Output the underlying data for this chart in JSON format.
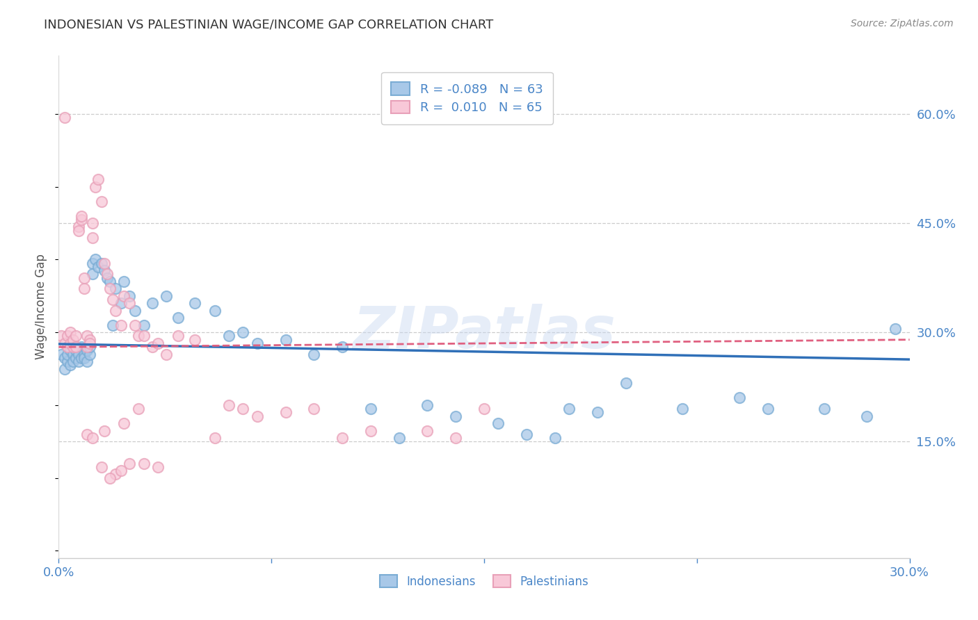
{
  "title": "INDONESIAN VS PALESTINIAN WAGE/INCOME GAP CORRELATION CHART",
  "source": "Source: ZipAtlas.com",
  "ylabel": "Wage/Income Gap",
  "x_min": 0.0,
  "x_max": 0.3,
  "y_min": -0.01,
  "y_max": 0.68,
  "yticks": [
    0.15,
    0.3,
    0.45,
    0.6
  ],
  "ytick_labels": [
    "15.0%",
    "30.0%",
    "45.0%",
    "60.0%"
  ],
  "xticks": [
    0.0,
    0.075,
    0.15,
    0.225,
    0.3
  ],
  "grid_color": "#cccccc",
  "bg_color": "#ffffff",
  "indonesian_color": "#a8c8e8",
  "indonesian_edge_color": "#7aacd4",
  "indonesian_line_color": "#3070b8",
  "palestinian_color": "#f8c8d8",
  "palestinian_edge_color": "#e8a0b8",
  "palestinian_line_color": "#e06080",
  "R_indonesian": -0.089,
  "N_indonesian": 63,
  "R_palestinian": 0.01,
  "N_palestinian": 65,
  "watermark": "ZIPatlas",
  "indonesian_dots_x": [
    0.001,
    0.002,
    0.002,
    0.003,
    0.003,
    0.004,
    0.004,
    0.005,
    0.005,
    0.006,
    0.006,
    0.007,
    0.007,
    0.008,
    0.008,
    0.009,
    0.009,
    0.01,
    0.01,
    0.011,
    0.011,
    0.012,
    0.012,
    0.013,
    0.014,
    0.015,
    0.016,
    0.017,
    0.018,
    0.019,
    0.02,
    0.022,
    0.023,
    0.025,
    0.027,
    0.03,
    0.033,
    0.038,
    0.042,
    0.048,
    0.055,
    0.06,
    0.065,
    0.07,
    0.08,
    0.09,
    0.1,
    0.11,
    0.13,
    0.14,
    0.155,
    0.165,
    0.18,
    0.19,
    0.2,
    0.22,
    0.25,
    0.27,
    0.285,
    0.295,
    0.12,
    0.175,
    0.24
  ],
  "indonesian_dots_y": [
    0.27,
    0.265,
    0.25,
    0.26,
    0.27,
    0.275,
    0.255,
    0.27,
    0.26,
    0.265,
    0.275,
    0.27,
    0.26,
    0.265,
    0.28,
    0.27,
    0.265,
    0.275,
    0.26,
    0.27,
    0.28,
    0.395,
    0.38,
    0.4,
    0.39,
    0.395,
    0.385,
    0.375,
    0.37,
    0.31,
    0.36,
    0.34,
    0.37,
    0.35,
    0.33,
    0.31,
    0.34,
    0.35,
    0.32,
    0.34,
    0.33,
    0.295,
    0.3,
    0.285,
    0.29,
    0.27,
    0.28,
    0.195,
    0.2,
    0.185,
    0.175,
    0.16,
    0.195,
    0.19,
    0.23,
    0.195,
    0.195,
    0.195,
    0.185,
    0.305,
    0.155,
    0.155,
    0.21
  ],
  "palestinian_dots_x": [
    0.001,
    0.002,
    0.002,
    0.003,
    0.003,
    0.004,
    0.004,
    0.005,
    0.005,
    0.006,
    0.006,
    0.007,
    0.007,
    0.008,
    0.008,
    0.009,
    0.009,
    0.01,
    0.01,
    0.011,
    0.011,
    0.012,
    0.012,
    0.013,
    0.014,
    0.015,
    0.016,
    0.017,
    0.018,
    0.019,
    0.02,
    0.022,
    0.023,
    0.025,
    0.027,
    0.028,
    0.03,
    0.033,
    0.035,
    0.038,
    0.042,
    0.048,
    0.055,
    0.06,
    0.065,
    0.07,
    0.08,
    0.09,
    0.1,
    0.11,
    0.13,
    0.14,
    0.03,
    0.035,
    0.025,
    0.02,
    0.015,
    0.018,
    0.022,
    0.01,
    0.012,
    0.016,
    0.023,
    0.028,
    0.15
  ],
  "palestinian_dots_y": [
    0.295,
    0.285,
    0.595,
    0.28,
    0.295,
    0.285,
    0.3,
    0.28,
    0.29,
    0.28,
    0.295,
    0.445,
    0.44,
    0.455,
    0.46,
    0.36,
    0.375,
    0.295,
    0.28,
    0.29,
    0.285,
    0.43,
    0.45,
    0.5,
    0.51,
    0.48,
    0.395,
    0.38,
    0.36,
    0.345,
    0.33,
    0.31,
    0.35,
    0.34,
    0.31,
    0.295,
    0.295,
    0.28,
    0.285,
    0.27,
    0.295,
    0.29,
    0.155,
    0.2,
    0.195,
    0.185,
    0.19,
    0.195,
    0.155,
    0.165,
    0.165,
    0.155,
    0.12,
    0.115,
    0.12,
    0.105,
    0.115,
    0.1,
    0.11,
    0.16,
    0.155,
    0.165,
    0.175,
    0.195,
    0.195
  ]
}
